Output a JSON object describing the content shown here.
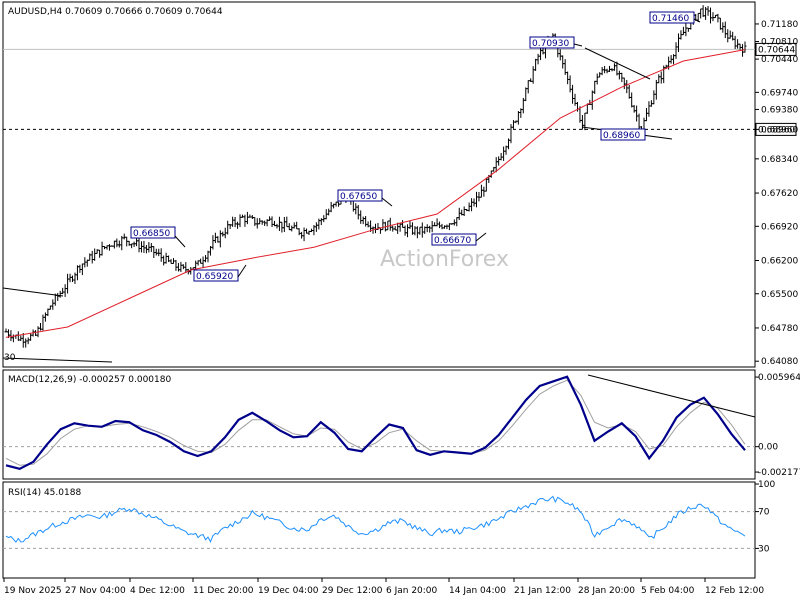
{
  "header": {
    "symbol": "AUDUSD,H4",
    "ohlc": "0.70609 0.70666 0.70609 0.70644"
  },
  "watermark": "ActionForex",
  "chart_data": [
    {
      "type": "candlestick",
      "title": "AUDUSD,H4 0.70609 0.70666 0.70609 0.70644",
      "ylim": [
        0.6408,
        0.7146
      ],
      "y_ticks": [
        "0.71180",
        "0.70810",
        "0.70440",
        "0.69740",
        "0.69380",
        "0.68960",
        "0.68340",
        "0.67620",
        "0.66920",
        "0.66200",
        "0.65500",
        "0.64780",
        "0.64080"
      ],
      "y_tick_values": [
        0.7118,
        0.7081,
        0.7044,
        0.6974,
        0.6938,
        0.6896,
        0.6834,
        0.6762,
        0.6692,
        0.662,
        0.655,
        0.6478,
        0.6408
      ],
      "x_labels": [
        "19 Nov 2025",
        "27 Nov 04:00",
        "4 Dec 12:00",
        "11 Dec 20:00",
        "19 Dec 04:00",
        "29 Dec 12:00",
        "6 Jan 20:00",
        "14 Jan 04:00",
        "21 Jan 12:00",
        "28 Jan 20:00",
        "5 Feb 04:00",
        "12 Feb 12:00"
      ],
      "close_path": [
        [
          0,
          0.647
        ],
        [
          6,
          0.6455
        ],
        [
          12,
          0.6462
        ],
        [
          18,
          0.6525
        ],
        [
          24,
          0.6565
        ],
        [
          30,
          0.661
        ],
        [
          36,
          0.6632
        ],
        [
          42,
          0.6655
        ],
        [
          48,
          0.6665
        ],
        [
          54,
          0.6652
        ],
        [
          60,
          0.6638
        ],
        [
          66,
          0.6616
        ],
        [
          72,
          0.66
        ],
        [
          78,
          0.6612
        ],
        [
          84,
          0.6655
        ],
        [
          90,
          0.669
        ],
        [
          96,
          0.671
        ],
        [
          102,
          0.67
        ],
        [
          108,
          0.6705
        ],
        [
          114,
          0.669
        ],
        [
          120,
          0.668
        ],
        [
          126,
          0.6695
        ],
        [
          132,
          0.673
        ],
        [
          138,
          0.6755
        ],
        [
          144,
          0.671
        ],
        [
          150,
          0.669
        ],
        [
          156,
          0.6695
        ],
        [
          162,
          0.6685
        ],
        [
          168,
          0.6682
        ],
        [
          174,
          0.669
        ],
        [
          180,
          0.67
        ],
        [
          186,
          0.672
        ],
        [
          192,
          0.6755
        ],
        [
          198,
          0.681
        ],
        [
          204,
          0.688
        ],
        [
          210,
          0.696
        ],
        [
          216,
          0.705
        ],
        [
          222,
          0.7093
        ],
        [
          228,
          0.7
        ],
        [
          234,
          0.6905
        ],
        [
          240,
          0.701
        ],
        [
          246,
          0.703
        ],
        [
          252,
          0.698
        ],
        [
          258,
          0.6896
        ],
        [
          264,
          0.699
        ],
        [
          270,
          0.705
        ],
        [
          276,
          0.711
        ],
        [
          282,
          0.7146
        ],
        [
          288,
          0.713
        ],
        [
          294,
          0.7085
        ],
        [
          300,
          0.7064
        ]
      ],
      "series": [
        {
          "name": "",
          "type": "ema",
          "values_path": [
            [
              0,
              0.6458
            ],
            [
              30,
              0.648
            ],
            [
              60,
              0.654
            ],
            [
              90,
              0.66
            ],
            [
              120,
              0.6625
            ],
            [
              150,
              0.6648
            ],
            [
              180,
              0.6686
            ],
            [
              210,
              0.6718
            ],
            [
              240,
              0.6812
            ],
            [
              270,
              0.692
            ],
            [
              300,
              0.6985
            ],
            [
              330,
              0.704
            ],
            [
              360,
              0.7064
            ]
          ]
        }
      ],
      "price_labels": [
        "0.66850",
        "0.65920",
        "0.67650",
        "0.66670",
        "0.70930",
        "0.68960",
        "0.71460"
      ],
      "price_label_values": [
        0.6685,
        0.6592,
        0.6765,
        0.6667,
        0.7093,
        0.6896,
        0.7146
      ],
      "current_price": "0.70644",
      "current_price_value": 0.70644,
      "hline_label": "0.68960",
      "hline_value": 0.6896,
      "left_label": "30"
    },
    {
      "type": "line",
      "title": "MACD(12,26,9) -0.000257 0.000180",
      "ylim": [
        -0.002177,
        0.005964
      ],
      "y_ticks": [
        "0.005964",
        "0.00",
        "-0.002177"
      ],
      "y_tick_values": [
        0.005964,
        0.0,
        -0.002177
      ],
      "series": [
        {
          "name": "MACD",
          "color": "#00008b",
          "values": [
            -0.0016,
            -0.0019,
            -0.0013,
            0.0002,
            0.0015,
            0.002,
            0.0018,
            0.0017,
            0.0022,
            0.0021,
            0.0014,
            0.001,
            0.0004,
            -0.0004,
            -0.0008,
            -0.0004,
            0.0008,
            0.0023,
            0.0029,
            0.0022,
            0.0014,
            0.0008,
            0.0009,
            0.0021,
            0.0012,
            -0.0002,
            -0.0004,
            0.0008,
            0.0019,
            0.0016,
            -0.0003,
            -0.0007,
            -0.0004,
            -0.0005,
            -0.0006,
            -0.0001,
            0.001,
            0.0025,
            0.004,
            0.0052,
            0.0056,
            0.006,
            0.0036,
            0.0005,
            0.0013,
            0.002,
            0.0009,
            -0.001,
            0.0005,
            0.0025,
            0.0036,
            0.0042,
            0.0028,
            0.0011,
            -0.0003
          ]
        },
        {
          "name": "Signal",
          "color": "#a0a0a0",
          "values": [
            -0.001,
            -0.0016,
            -0.0015,
            -0.0006,
            0.0007,
            0.0015,
            0.0018,
            0.0017,
            0.0019,
            0.002,
            0.0017,
            0.0013,
            0.0008,
            0.0001,
            -0.0004,
            -0.0005,
            0.0002,
            0.0014,
            0.0023,
            0.0023,
            0.0017,
            0.0011,
            0.0009,
            0.0016,
            0.0015,
            0.0004,
            -0.0002,
            0.0003,
            0.0012,
            0.0015,
            0.0005,
            -0.0003,
            -0.0004,
            -0.0005,
            -0.0006,
            -0.0003,
            0.0005,
            0.0018,
            0.0032,
            0.0045,
            0.0052,
            0.0057,
            0.0044,
            0.0021,
            0.0016,
            0.0019,
            0.0013,
            -0.0002,
            0.0001,
            0.0017,
            0.0029,
            0.0038,
            0.0033,
            0.0019,
            0.0002
          ]
        }
      ]
    },
    {
      "type": "line",
      "title": "RSI(14) 45.0188",
      "ylim": [
        0,
        100
      ],
      "y_ticks": [
        "100",
        "70",
        "30",
        "0"
      ],
      "y_tick_values": [
        100,
        70,
        30,
        0
      ],
      "series": [
        {
          "name": "RSI",
          "color": "#1e90ff",
          "values": [
            42,
            38,
            45,
            52,
            58,
            62,
            66,
            64,
            70,
            74,
            68,
            62,
            55,
            48,
            44,
            40,
            52,
            60,
            68,
            64,
            58,
            52,
            50,
            62,
            66,
            54,
            46,
            50,
            58,
            60,
            52,
            46,
            50,
            48,
            52,
            56,
            62,
            70,
            76,
            82,
            84,
            80,
            70,
            44,
            54,
            62,
            56,
            40,
            52,
            66,
            74,
            78,
            62,
            50,
            45
          ]
        }
      ]
    }
  ]
}
